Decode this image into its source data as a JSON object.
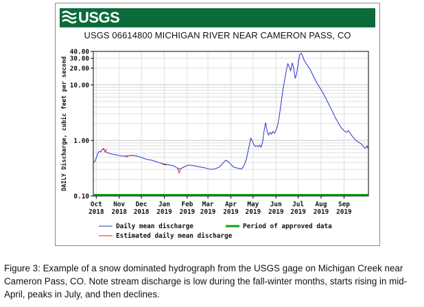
{
  "banner": {
    "logo_text": "USGS",
    "logo_icon": "usgs-wave-icon",
    "color": "#0b6b3a"
  },
  "chart_data": {
    "type": "line",
    "title": "USGS 06614800 MICHIGAN RIVER NEAR CAMERON PASS, CO",
    "ylabel": "DAILY Discharge, cubic feet per second",
    "xlabel": "",
    "yscale": "log",
    "ylim": [
      0.1,
      40
    ],
    "xlim": [
      "2018-09-27",
      "2019-10-04"
    ],
    "y_ticks": [
      {
        "value": 40,
        "label": "40.00"
      },
      {
        "value": 30,
        "label": "30.00"
      },
      {
        "value": 20,
        "label": "20.00"
      },
      {
        "value": 10,
        "label": "10.00"
      },
      {
        "value": 1,
        "label": "1.00"
      },
      {
        "value": 0.1,
        "label": "0.10"
      }
    ],
    "x_ticks": [
      {
        "date": "2018-10-01",
        "month": "Oct",
        "year": "2018"
      },
      {
        "date": "2018-11-01",
        "month": "Nov",
        "year": "2018"
      },
      {
        "date": "2018-12-01",
        "month": "Dec",
        "year": "2018"
      },
      {
        "date": "2019-01-01",
        "month": "Jan",
        "year": "2019"
      },
      {
        "date": "2019-02-01",
        "month": "Feb",
        "year": "2019"
      },
      {
        "date": "2019-03-01",
        "month": "Mar",
        "year": "2019"
      },
      {
        "date": "2019-04-01",
        "month": "Apr",
        "year": "2019"
      },
      {
        "date": "2019-05-01",
        "month": "May",
        "year": "2019"
      },
      {
        "date": "2019-06-01",
        "month": "Jun",
        "year": "2019"
      },
      {
        "date": "2019-07-01",
        "month": "Jul",
        "year": "2019"
      },
      {
        "date": "2019-08-01",
        "month": "Aug",
        "year": "2019"
      },
      {
        "date": "2019-09-01",
        "month": "Sep",
        "year": "2019"
      }
    ],
    "grid": true,
    "series": [
      {
        "name": "Daily mean discharge",
        "color": "#2233cc",
        "points": [
          [
            "2018-09-27",
            0.4
          ],
          [
            "2018-09-29",
            0.42
          ],
          [
            "2018-10-01",
            0.48
          ],
          [
            "2018-10-03",
            0.58
          ],
          [
            "2018-10-05",
            0.64
          ],
          [
            "2018-10-07",
            0.62
          ],
          [
            "2018-10-09",
            0.68
          ],
          [
            "2018-10-11",
            0.7
          ],
          [
            "2018-10-13",
            0.63
          ],
          [
            "2018-10-16",
            0.6
          ],
          [
            "2018-10-20",
            0.58
          ],
          [
            "2018-10-24",
            0.56
          ],
          [
            "2018-10-28",
            0.55
          ],
          [
            "2018-11-02",
            0.53
          ],
          [
            "2018-11-08",
            0.52
          ],
          [
            "2018-11-14",
            0.53
          ],
          [
            "2018-11-20",
            0.54
          ],
          [
            "2018-11-25",
            0.52
          ],
          [
            "2018-11-30",
            0.5
          ],
          [
            "2018-12-05",
            0.47
          ],
          [
            "2018-12-10",
            0.45
          ],
          [
            "2018-12-15",
            0.44
          ],
          [
            "2018-12-20",
            0.42
          ],
          [
            "2018-12-25",
            0.4
          ],
          [
            "2018-12-30",
            0.38
          ],
          [
            "2019-01-04",
            0.37
          ],
          [
            "2019-01-09",
            0.36
          ],
          [
            "2019-01-13",
            0.35
          ],
          [
            "2019-01-17",
            0.33
          ],
          [
            "2019-01-20",
            0.31
          ],
          [
            "2019-01-23",
            0.31
          ],
          [
            "2019-01-27",
            0.33
          ],
          [
            "2019-01-31",
            0.35
          ],
          [
            "2019-02-05",
            0.36
          ],
          [
            "2019-02-10",
            0.35
          ],
          [
            "2019-02-15",
            0.34
          ],
          [
            "2019-02-20",
            0.33
          ],
          [
            "2019-02-25",
            0.32
          ],
          [
            "2019-03-01",
            0.31
          ],
          [
            "2019-03-06",
            0.3
          ],
          [
            "2019-03-11",
            0.31
          ],
          [
            "2019-03-16",
            0.33
          ],
          [
            "2019-03-19",
            0.36
          ],
          [
            "2019-03-22",
            0.4
          ],
          [
            "2019-03-25",
            0.44
          ],
          [
            "2019-03-28",
            0.42
          ],
          [
            "2019-04-01",
            0.37
          ],
          [
            "2019-04-05",
            0.33
          ],
          [
            "2019-04-09",
            0.32
          ],
          [
            "2019-04-13",
            0.31
          ],
          [
            "2019-04-16",
            0.31
          ],
          [
            "2019-04-19",
            0.36
          ],
          [
            "2019-04-22",
            0.46
          ],
          [
            "2019-04-24",
            0.62
          ],
          [
            "2019-04-26",
            0.82
          ],
          [
            "2019-04-28",
            1.1
          ],
          [
            "2019-04-30",
            0.98
          ],
          [
            "2019-05-02",
            0.85
          ],
          [
            "2019-05-04",
            0.78
          ],
          [
            "2019-05-06",
            0.8
          ],
          [
            "2019-05-08",
            0.77
          ],
          [
            "2019-05-10",
            0.82
          ],
          [
            "2019-05-12",
            0.76
          ],
          [
            "2019-05-14",
            0.95
          ],
          [
            "2019-05-16",
            1.5
          ],
          [
            "2019-05-18",
            2.1
          ],
          [
            "2019-05-20",
            1.45
          ],
          [
            "2019-05-22",
            1.25
          ],
          [
            "2019-05-24",
            1.4
          ],
          [
            "2019-05-26",
            1.3
          ],
          [
            "2019-05-28",
            1.45
          ],
          [
            "2019-05-30",
            1.35
          ],
          [
            "2019-06-01",
            1.5
          ],
          [
            "2019-06-03",
            1.8
          ],
          [
            "2019-06-05",
            2.5
          ],
          [
            "2019-06-07",
            3.8
          ],
          [
            "2019-06-09",
            6.0
          ],
          [
            "2019-06-11",
            9.0
          ],
          [
            "2019-06-13",
            13.0
          ],
          [
            "2019-06-15",
            18.0
          ],
          [
            "2019-06-17",
            24.0
          ],
          [
            "2019-06-19",
            21.0
          ],
          [
            "2019-06-21",
            18.0
          ],
          [
            "2019-06-23",
            25.0
          ],
          [
            "2019-06-25",
            20.0
          ],
          [
            "2019-06-27",
            13.0
          ],
          [
            "2019-06-29",
            16.0
          ],
          [
            "2019-07-01",
            24.0
          ],
          [
            "2019-07-03",
            35.0
          ],
          [
            "2019-07-05",
            37.0
          ],
          [
            "2019-07-07",
            33.0
          ],
          [
            "2019-07-09",
            28.0
          ],
          [
            "2019-07-12",
            24.0
          ],
          [
            "2019-07-15",
            21.0
          ],
          [
            "2019-07-18",
            18.0
          ],
          [
            "2019-07-22",
            14.0
          ],
          [
            "2019-07-26",
            11.0
          ],
          [
            "2019-07-30",
            9.0
          ],
          [
            "2019-08-04",
            7.0
          ],
          [
            "2019-08-08",
            5.5
          ],
          [
            "2019-08-12",
            4.3
          ],
          [
            "2019-08-16",
            3.4
          ],
          [
            "2019-08-20",
            2.6
          ],
          [
            "2019-08-24",
            2.1
          ],
          [
            "2019-08-28",
            1.7
          ],
          [
            "2019-09-01",
            1.5
          ],
          [
            "2019-09-04",
            1.4
          ],
          [
            "2019-09-07",
            1.5
          ],
          [
            "2019-09-10",
            1.3
          ],
          [
            "2019-09-13",
            1.15
          ],
          [
            "2019-09-17",
            1.0
          ],
          [
            "2019-09-21",
            0.92
          ],
          [
            "2019-09-25",
            0.85
          ],
          [
            "2019-09-28",
            0.75
          ],
          [
            "2019-09-30",
            0.72
          ],
          [
            "2019-10-02",
            0.8
          ],
          [
            "2019-10-04",
            0.7
          ]
        ]
      },
      {
        "name": "Estimated daily mean discharge",
        "color": "#e41a1c",
        "segments": [
          [
            [
              "2018-10-09",
              0.68
            ],
            [
              "2018-10-11",
              0.72
            ],
            [
              "2018-10-13",
              0.62
            ],
            [
              "2018-10-15",
              0.7
            ]
          ],
          [
            [
              "2018-11-10",
              0.5
            ],
            [
              "2018-11-14",
              0.53
            ],
            [
              "2018-11-18",
              0.54
            ],
            [
              "2018-11-22",
              0.53
            ]
          ],
          [
            [
              "2018-12-27",
              0.39
            ],
            [
              "2018-12-31",
              0.37
            ],
            [
              "2019-01-04",
              0.36
            ]
          ],
          [
            [
              "2019-01-19",
              0.31
            ],
            [
              "2019-01-21",
              0.26
            ],
            [
              "2019-01-23",
              0.3
            ]
          ]
        ]
      },
      {
        "name": "Period of approved data",
        "color": "#17a31d",
        "range": [
          "2018-09-27",
          "2019-10-04"
        ]
      }
    ],
    "legend": {
      "placement": "bottom",
      "entries": [
        {
          "label": "Daily mean discharge",
          "color": "#2233cc"
        },
        {
          "label": "Estimated daily mean discharge",
          "color": "#e41a1c"
        },
        {
          "label": "Period of approved data",
          "color": "#17a31d"
        }
      ]
    }
  },
  "caption": "Figure 3: Example of a snow dominated hydrograph from the USGS gage on Michigan Creek near Cameron Pass, CO. Note stream discharge is low during the fall-winter months, starts rising in mid-April, peaks in July, and then declines."
}
